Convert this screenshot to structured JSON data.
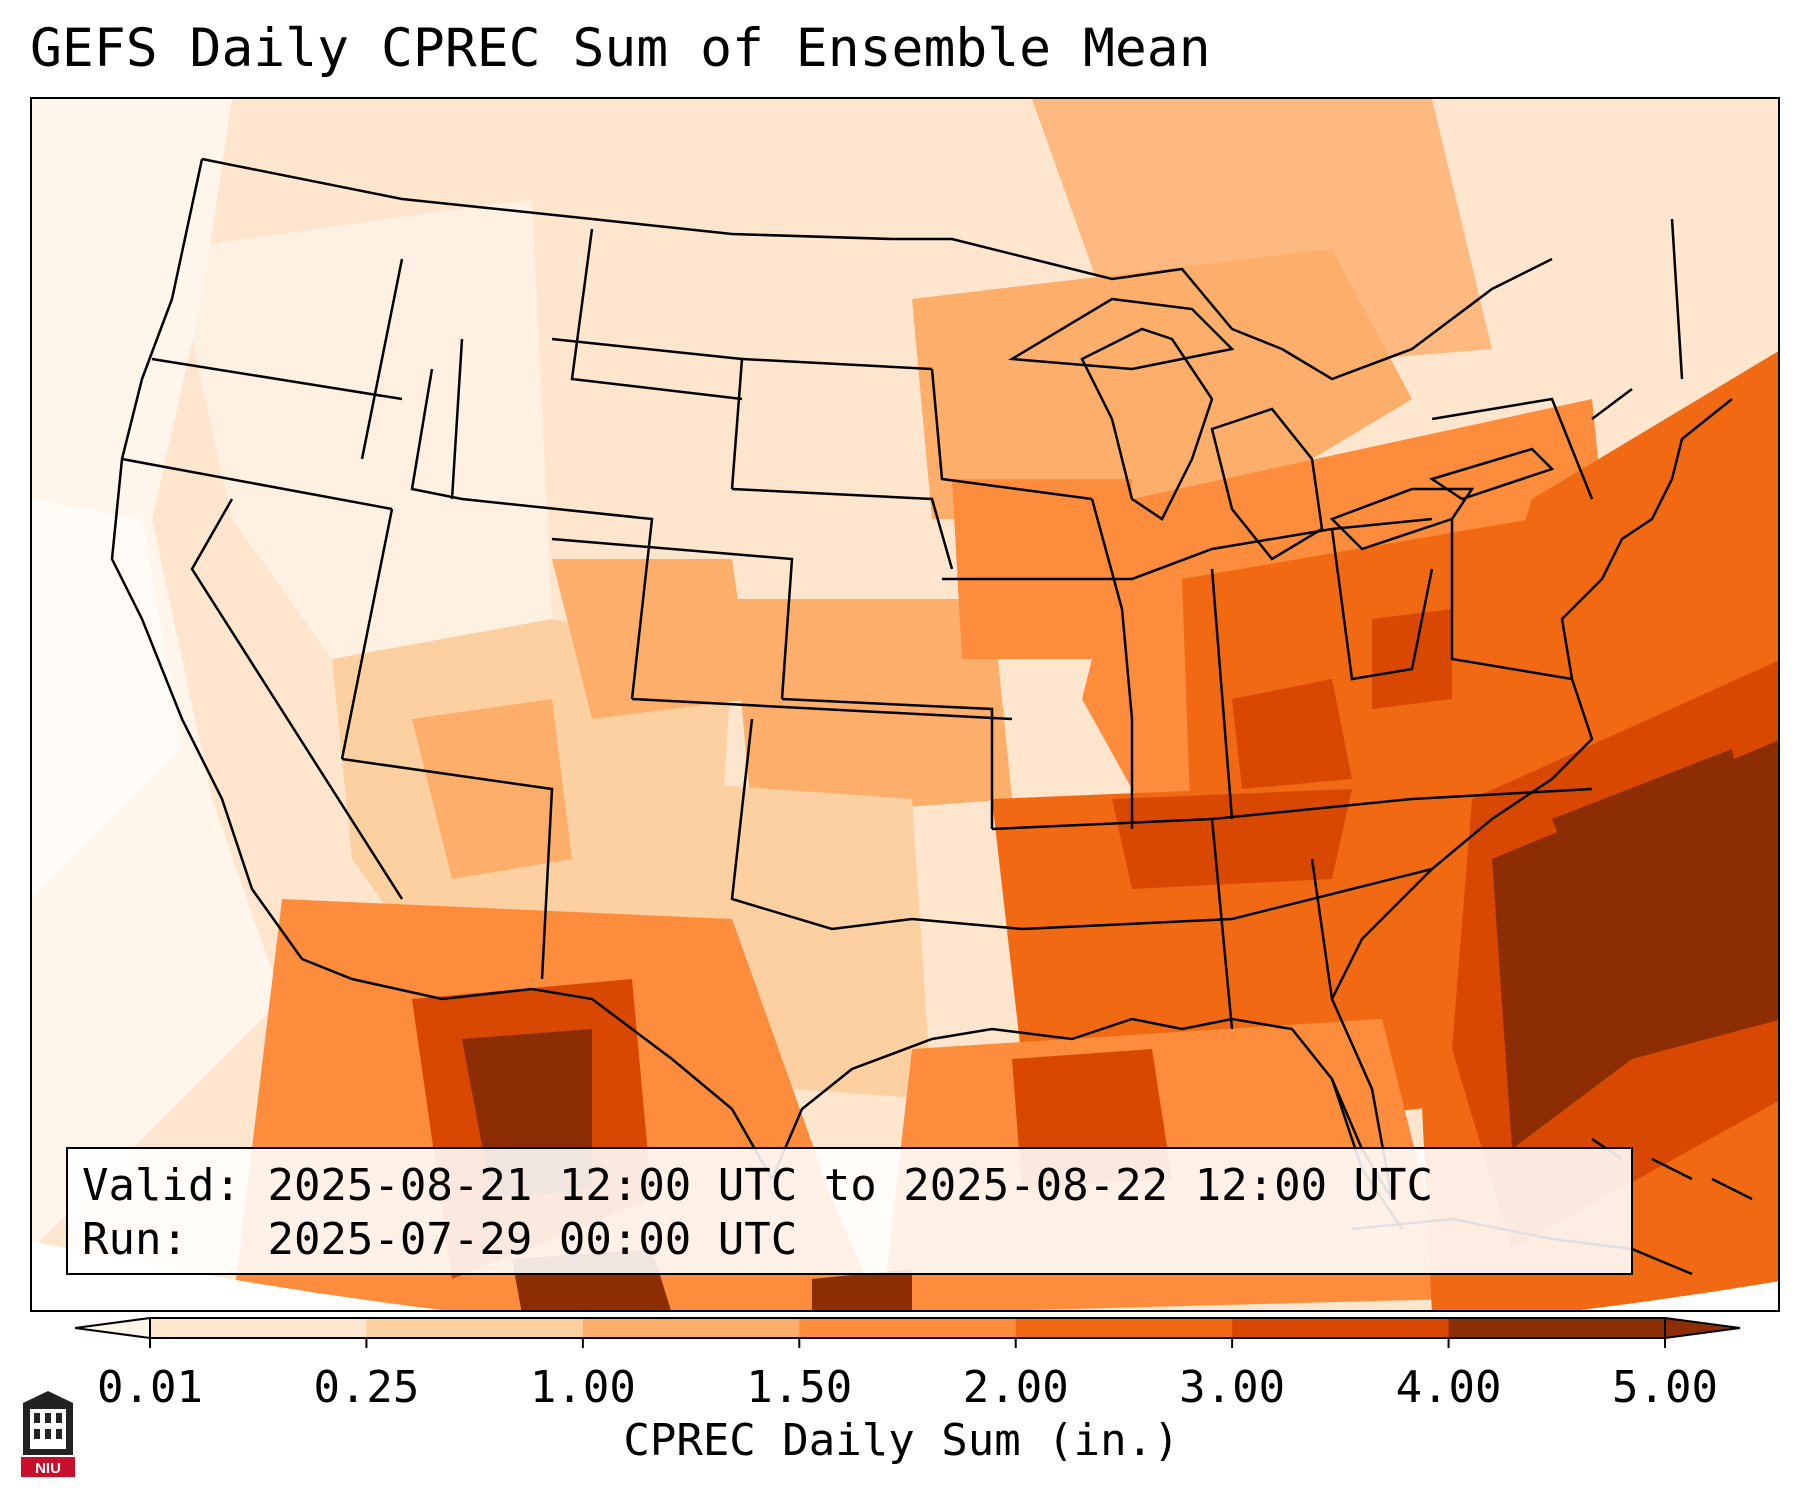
{
  "title": "GEFS Daily CPREC Sum of Ensemble Mean",
  "info": {
    "valid_label": "Valid:",
    "valid_value": "2025-08-21 12:00 UTC to 2025-08-22 12:00 UTC",
    "run_label": "Run:",
    "run_value": "2025-07-29 00:00 UTC"
  },
  "colorbar": {
    "label": "CPREC Daily Sum (in.)",
    "ticks": [
      "0.01",
      "0.25",
      "1.00",
      "1.50",
      "2.00",
      "3.00",
      "4.00",
      "5.00"
    ],
    "colors": [
      "#fff5eb",
      "#fee6ce",
      "#fdd0a2",
      "#fdae6b",
      "#fd8d3c",
      "#f16913",
      "#d94801",
      "#8c2d04"
    ],
    "extend": "both"
  },
  "logo": {
    "text": "NIU",
    "color": "#c8102e"
  },
  "colors": {
    "land_border": "#000000",
    "frame": "#000000",
    "outside_domain": "#ffffff"
  }
}
